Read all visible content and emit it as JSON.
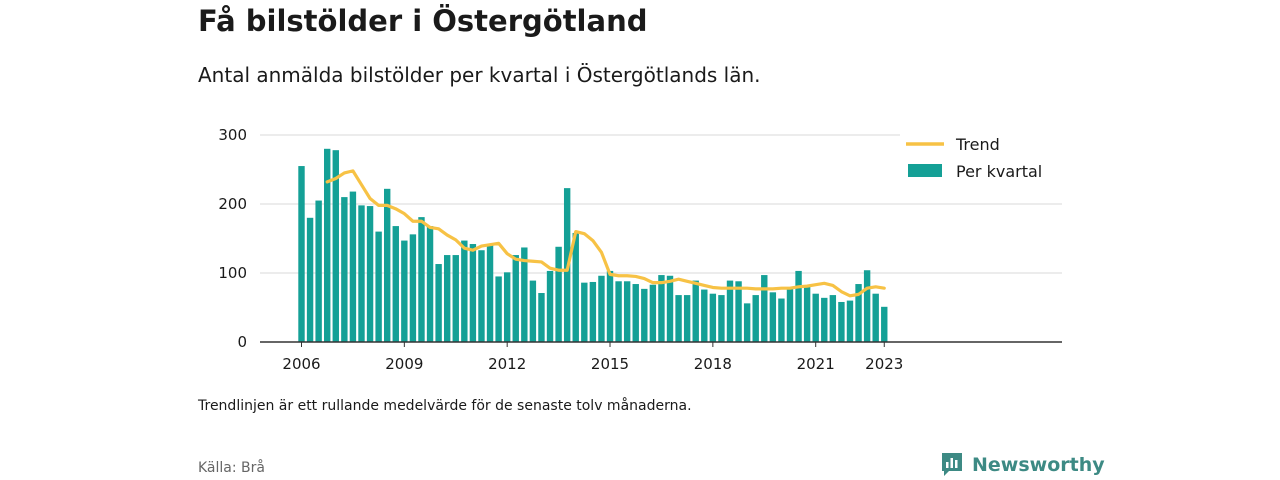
{
  "header": {
    "title": "Få bilstölder i Östergötland",
    "subtitle": "Antal anmälda bilstölder per kvartal i Östergötlands län."
  },
  "footer": {
    "note": "Trendlinjen är ett rullande medelvärde för de senaste tolv månaderna.",
    "source": "Källa: Brå",
    "brand": "Newsworthy"
  },
  "colors": {
    "bar": "#14a096",
    "trend": "#f7c245",
    "grid": "#d9d9d9",
    "axis": "#333333",
    "brand": "#3d8a84"
  },
  "chart_data": {
    "type": "bar",
    "title": "Få bilstölder i Östergötland",
    "xlabel": "",
    "ylabel": "",
    "ylim": [
      0,
      300
    ],
    "yticks": [
      0,
      100,
      200,
      300
    ],
    "xticks": [
      "2006",
      "2009",
      "2012",
      "2015",
      "2018",
      "2021",
      "2023"
    ],
    "grid": true,
    "legend": "top-right",
    "categories": [
      "2006 Q1",
      "2006 Q2",
      "2006 Q3",
      "2006 Q4",
      "2007 Q1",
      "2007 Q2",
      "2007 Q3",
      "2007 Q4",
      "2008 Q1",
      "2008 Q2",
      "2008 Q3",
      "2008 Q4",
      "2009 Q1",
      "2009 Q2",
      "2009 Q3",
      "2009 Q4",
      "2010 Q1",
      "2010 Q2",
      "2010 Q3",
      "2010 Q4",
      "2011 Q1",
      "2011 Q2",
      "2011 Q3",
      "2011 Q4",
      "2012 Q1",
      "2012 Q2",
      "2012 Q3",
      "2012 Q4",
      "2013 Q1",
      "2013 Q2",
      "2013 Q3",
      "2013 Q4",
      "2014 Q1",
      "2014 Q2",
      "2014 Q3",
      "2014 Q4",
      "2015 Q1",
      "2015 Q2",
      "2015 Q3",
      "2015 Q4",
      "2016 Q1",
      "2016 Q2",
      "2016 Q3",
      "2016 Q4",
      "2017 Q1",
      "2017 Q2",
      "2017 Q3",
      "2017 Q4",
      "2018 Q1",
      "2018 Q2",
      "2018 Q3",
      "2018 Q4",
      "2019 Q1",
      "2019 Q2",
      "2019 Q3",
      "2019 Q4",
      "2020 Q1",
      "2020 Q2",
      "2020 Q3",
      "2020 Q4",
      "2021 Q1",
      "2021 Q2",
      "2021 Q3",
      "2021 Q4",
      "2022 Q1",
      "2022 Q2",
      "2022 Q3",
      "2022 Q4",
      "2023 Q1"
    ],
    "series": [
      {
        "name": "Per kvartal",
        "kind": "bar",
        "values": [
          255,
          180,
          205,
          280,
          278,
          210,
          218,
          198,
          197,
          160,
          222,
          168,
          147,
          156,
          181,
          168,
          113,
          126,
          126,
          147,
          142,
          133,
          140,
          95,
          101,
          126,
          137,
          89,
          71,
          103,
          138,
          223,
          158,
          86,
          87,
          96,
          103,
          88,
          88,
          84,
          77,
          83,
          97,
          96,
          68,
          68,
          89,
          76,
          70,
          68,
          89,
          88,
          56,
          68,
          97,
          72,
          63,
          78,
          103,
          80,
          70,
          64,
          68,
          58,
          60,
          84,
          104,
          70,
          51
        ]
      },
      {
        "name": "Trend",
        "kind": "line",
        "values": [
          null,
          null,
          null,
          232,
          237,
          245,
          248,
          228,
          208,
          198,
          198,
          193,
          186,
          175,
          175,
          166,
          164,
          155,
          148,
          136,
          133,
          139,
          141,
          143,
          128,
          120,
          118,
          117,
          116,
          107,
          104,
          104,
          160,
          157,
          147,
          130,
          98,
          96,
          96,
          95,
          92,
          86,
          86,
          88,
          91,
          88,
          85,
          82,
          79,
          78,
          78,
          78,
          78,
          77,
          77,
          77,
          78,
          78,
          80,
          81,
          83,
          85,
          82,
          73,
          67,
          69,
          78,
          80,
          78
        ]
      }
    ]
  }
}
